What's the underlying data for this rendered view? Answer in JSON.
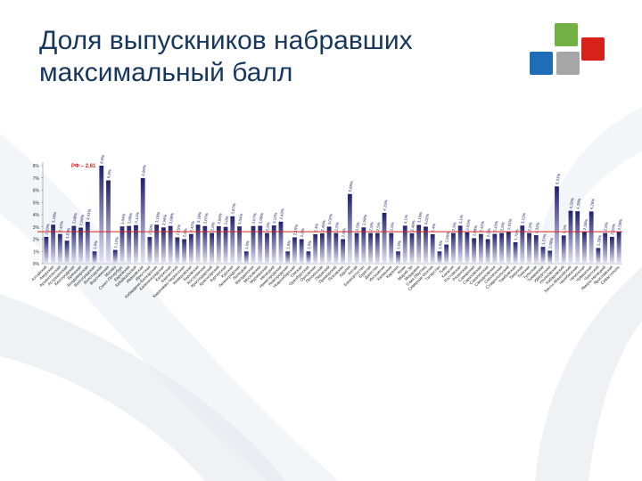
{
  "slide": {
    "title": "Доля выпускников набравших максимальный балл"
  },
  "colors": {
    "title": "#17375e",
    "bar": "#1f1f6e",
    "bar_fade": "#e6e6f5",
    "avg_line": "#d9211c",
    "logo_green": "#72b043",
    "logo_red": "#d9211c",
    "logo_blue": "#1f6db6",
    "logo_grey": "#a6a6a6"
  },
  "chart_data": {
    "type": "bar",
    "title": "",
    "xlabel": "",
    "ylabel": "",
    "ylim": [
      0,
      8
    ],
    "y_ticks": [
      "0%",
      "1%",
      "2%",
      "3%",
      "4%",
      "5%",
      "6%",
      "7%",
      "8%"
    ],
    "grid": false,
    "reference_line": {
      "label": "РФ – 2,61",
      "value": 2.61
    },
    "categories": [
      "Алтайский",
      "Амурская",
      "Архангельская",
      "Астраханская",
      "Белгородская",
      "Брянская",
      "Владимирская",
      "Волгоградская",
      "Вологодская",
      "Воронежская",
      "Москва",
      "Санкт-Петербург",
      "Еврейская",
      "Забайкальский",
      "Ивановская",
      "Иркутская",
      "Кабардино-Балкарская",
      "Калининградская",
      "Калужская",
      "Камчатский",
      "Карачаево-Черкесская",
      "Кемеровская",
      "Кировская",
      "Костромская",
      "Краснодарский",
      "Красноярский",
      "Курганская",
      "Курская",
      "Ленинградская",
      "Липецкая",
      "Магаданская",
      "Московская",
      "Мурманская",
      "Ненецкий",
      "Нижегородская",
      "Новгородская",
      "Новосибирская",
      "Омская",
      "Оренбургская",
      "Орловская",
      "Пензенская",
      "Пермский",
      "Приморский",
      "Псковская",
      "Адыгея",
      "Алтай",
      "Башкортостан",
      "Бурятия",
      "Дагестан",
      "Ингушетия",
      "Калмыкия",
      "Карелия",
      "Коми",
      "Марий Эл",
      "Мордовия",
      "Саха (Якутия)",
      "Северная Осетия",
      "Татарстан",
      "Тыва",
      "Хакасия",
      "Ростовская",
      "Рязанская",
      "Самарская",
      "Саратовская",
      "Сахалинская",
      "Свердловская",
      "Смоленская",
      "Ставропольский",
      "Тамбовская",
      "Тверская",
      "Томская",
      "Тульская",
      "Тюменская",
      "Удмуртская",
      "Ульяновская",
      "Хабаровский",
      "Ханты-Мансийский",
      "Челябинская",
      "Чеченская",
      "Чувашская",
      "Чукотский",
      "Ямало-Ненецкий",
      "Ярославская",
      "Севастополь"
    ],
    "values": [
      2.19,
      3.18,
      2.42,
      1.87,
      3.08,
      2.94,
      3.41,
      1.0,
      8.0,
      6.8,
      1.12,
      3.04,
      3.08,
      3.14,
      6.99,
      2.18,
      3.18,
      2.96,
      3.08,
      2.15,
      2.0,
      2.42,
      3.18,
      3.07,
      2.5,
      3.06,
      3.0,
      3.87,
      3.04,
      1.0,
      3.07,
      3.09,
      2.5,
      3.12,
      3.43,
      1.0,
      2.15,
      2.0,
      1.0,
      2.4,
      2.48,
      3.02,
      2.5,
      2.0,
      5.69,
      2.5,
      2.96,
      2.5,
      2.5,
      4.15,
      2.5,
      1.0,
      3.1,
      2.48,
      3.16,
      3.02,
      2.4,
      1.0,
      1.56,
      2.5,
      3.1,
      2.55,
      2.08,
      2.42,
      2.0,
      2.43,
      2.5,
      2.61,
      1.75,
      3.11,
      2.5,
      2.32,
      1.37,
      1.06,
      6.31,
      2.3,
      4.32,
      4.28,
      2.58,
      4.26,
      1.28,
      2.5,
      2.19,
      2.58
    ],
    "data_labels": [
      "2,19%",
      "3,18%",
      "2,42%",
      "1,87%",
      "3,08%",
      "2,94%",
      "3,41%",
      "1,0%",
      "8,0%",
      "6,8%",
      "1,12%",
      "3,04%",
      "3,08%",
      "3,14%",
      "6,99%",
      "2,18%",
      "3,18%",
      "2,96%",
      "3,08%",
      "2,15%",
      "2,0%",
      "2,42%",
      "3,18%",
      "3,07%",
      "2,5%",
      "3,06%",
      "3,0%",
      "3,87%",
      "3,04%",
      "1,0%",
      "3,07%",
      "3,09%",
      "2,5%",
      "3,12%",
      "3,43%",
      "1,0%",
      "2,15%",
      "2,0%",
      "1,0%",
      "2,4%",
      "2,48%",
      "3,02%",
      "2,5%",
      "2,0%",
      "5,69%",
      "2,5%",
      "2,96%",
      "2,5%",
      "2,5%",
      "4,15%",
      "2,5%",
      "1,0%",
      "3,1%",
      "2,48%",
      "3,16%",
      "3,02%",
      "2,4%",
      "1,0%",
      "1,56%",
      "2,5%",
      "3,1%",
      "2,55%",
      "2,08%",
      "2,42%",
      "2,0%",
      "2,43%",
      "2,5%",
      "2,61%",
      "1,75%",
      "3,11%",
      "2,5%",
      "2,32%",
      "1,37%",
      "1,06%",
      "6,31%",
      "2,3%",
      "4,32%",
      "4,28%",
      "2,58%",
      "4,26%",
      "1,28%",
      "2,5%",
      "2,19%",
      "2,58%"
    ]
  }
}
